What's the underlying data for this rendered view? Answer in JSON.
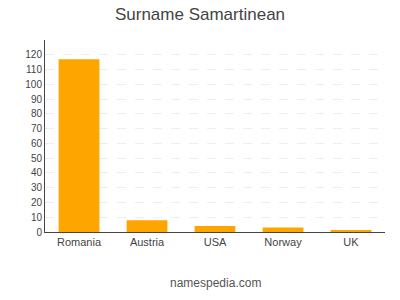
{
  "chart_data": {
    "type": "bar",
    "title": "Surname Samartinean",
    "categories": [
      "Romania",
      "Austria",
      "USA",
      "Norway",
      "UK"
    ],
    "values": [
      117,
      8,
      4,
      3,
      1
    ],
    "color": "#FFA500",
    "ylim": [
      0,
      130
    ],
    "yticks": [
      0,
      10,
      20,
      30,
      40,
      50,
      60,
      70,
      80,
      90,
      100,
      110,
      120
    ],
    "grid": true,
    "annotations": [
      "namespedia.com"
    ]
  }
}
